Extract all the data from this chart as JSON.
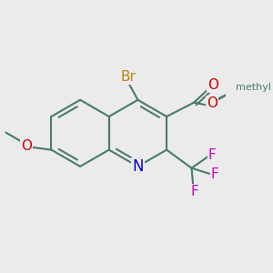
{
  "bg": "#EBEBEB",
  "bond_color": "#4a7a6a",
  "bond_width": 1.5,
  "atom_colors": {
    "Br": "#b8860b",
    "O": "#cc0000",
    "N": "#0000cc",
    "F": "#cc00cc"
  },
  "xlim": [
    -3.2,
    3.5
  ],
  "ylim": [
    -3.0,
    2.8
  ],
  "figsize": [
    3.0,
    3.0
  ],
  "dpi": 100
}
